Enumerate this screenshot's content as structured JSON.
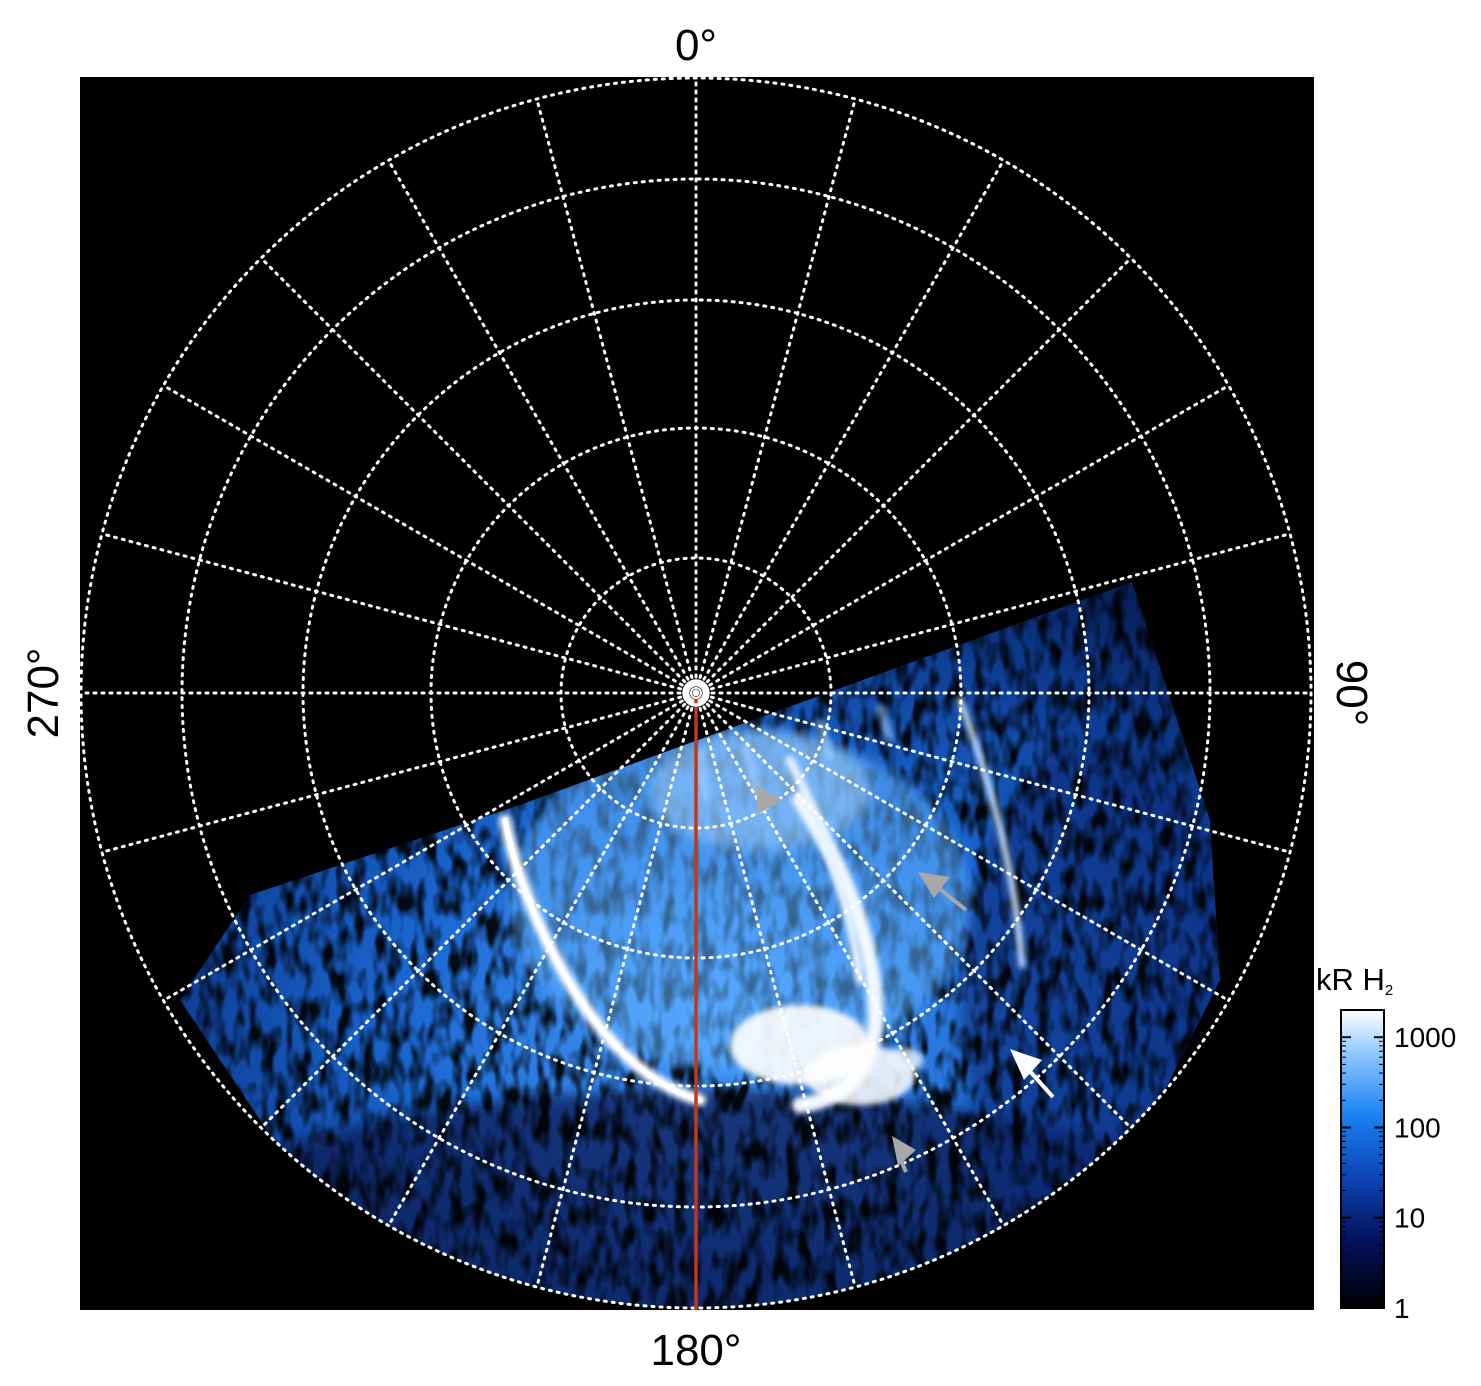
{
  "longitude_labels": {
    "top": "0°",
    "right": "90°",
    "bottom": "180°",
    "left": "270°"
  },
  "colorbar": {
    "title_main": "kR H",
    "title_sub": "2",
    "ticks": [
      "1000",
      "100",
      "10",
      "1"
    ],
    "tick_values": [
      1000,
      100,
      10,
      1
    ],
    "range": [
      1,
      2000
    ],
    "scale": "log"
  },
  "colors": {
    "background": "#000000",
    "grid": "#ffffff",
    "meridian": "#c0391b",
    "arrow_gray": "#a8a8a8",
    "arrow_white": "#ffffff",
    "emission_low": "#07124a",
    "emission_mid": "#1266d6",
    "emission_high": "#f4f9ff"
  },
  "annotations": [
    {
      "name": "gray-arrow-1",
      "color": "gray"
    },
    {
      "name": "gray-arrow-2",
      "color": "gray"
    },
    {
      "name": "gray-arrow-3",
      "color": "gray"
    },
    {
      "name": "white-arrow",
      "color": "white"
    }
  ]
}
